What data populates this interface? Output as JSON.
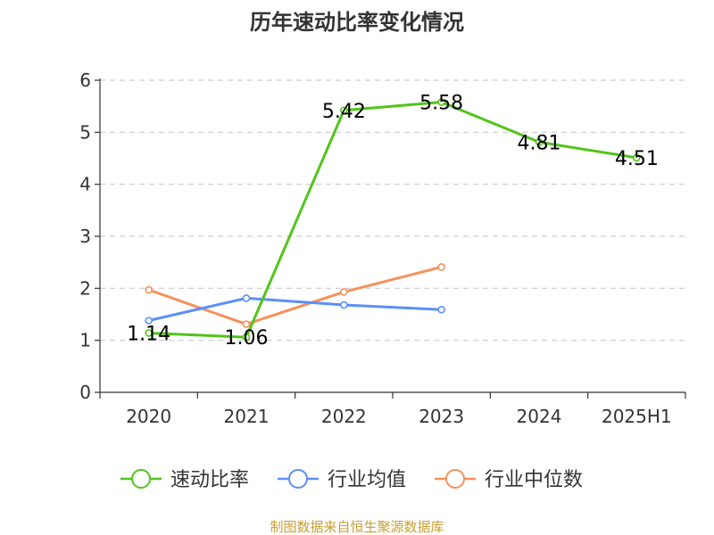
{
  "chart_data": {
    "type": "line",
    "title": "历年速动比率变化情况",
    "xlabel": "",
    "ylabel": "",
    "categories": [
      "2020",
      "2021",
      "2022",
      "2023",
      "2024",
      "2025H1"
    ],
    "ylim": [
      0,
      6
    ],
    "yticks": [
      0,
      1,
      2,
      3,
      4,
      5,
      6
    ],
    "grid": true,
    "legend_position": "bottom",
    "series": [
      {
        "name": "速动比率",
        "color": "#52c41a",
        "values": [
          1.14,
          1.06,
          5.42,
          5.58,
          4.81,
          4.51
        ],
        "labels": [
          "1.14",
          "1.06",
          "5.42",
          "5.58",
          "4.81",
          "4.51"
        ]
      },
      {
        "name": "行业均值",
        "color": "#5b8ff9",
        "values": [
          1.38,
          1.81,
          1.68,
          1.59,
          null,
          null
        ]
      },
      {
        "name": "行业中位数",
        "color": "#f6915a",
        "values": [
          1.97,
          1.31,
          1.93,
          2.41,
          null,
          null
        ]
      }
    ],
    "source": "制图数据来自恒生聚源数据库"
  }
}
